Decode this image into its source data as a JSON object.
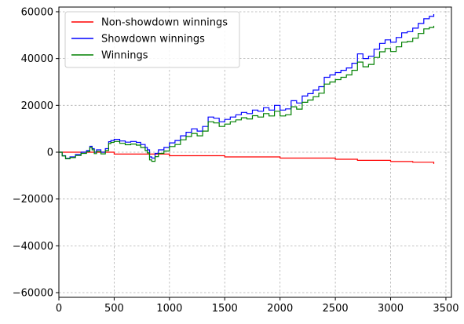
{
  "chart_data": {
    "type": "line",
    "xlim": [
      0,
      3550
    ],
    "ylim": [
      -62000,
      62000
    ],
    "x_ticks": [
      0,
      500,
      1000,
      1500,
      2000,
      2500,
      3000,
      3500
    ],
    "y_ticks": [
      -60000,
      -40000,
      -20000,
      0,
      20000,
      40000,
      60000
    ],
    "x_tick_labels": [
      "0",
      "500",
      "1000",
      "1500",
      "2000",
      "2500",
      "3000",
      "3500"
    ],
    "y_tick_labels": [
      "−60000",
      "−40000",
      "−20000",
      "0",
      "20000",
      "40000",
      "60000"
    ],
    "grid": true,
    "legend_position": "upper-left",
    "series": [
      {
        "name": "Non-showdown winnings",
        "color": "#ff0000",
        "x": [
          0,
          500,
          1000,
          1500,
          2000,
          2500,
          2700,
          3000,
          3200,
          3390
        ],
        "y": [
          0,
          -800,
          -1500,
          -2000,
          -2500,
          -3000,
          -3500,
          -4000,
          -4300,
          -5000
        ]
      },
      {
        "name": "Showdown winnings",
        "color": "#0000ff",
        "x": [
          0,
          30,
          60,
          100,
          150,
          200,
          250,
          280,
          300,
          320,
          340,
          380,
          420,
          450,
          470,
          500,
          550,
          600,
          650,
          700,
          740,
          780,
          800,
          820,
          840,
          870,
          900,
          950,
          1000,
          1050,
          1100,
          1150,
          1200,
          1250,
          1300,
          1350,
          1400,
          1450,
          1500,
          1550,
          1600,
          1650,
          1700,
          1750,
          1800,
          1850,
          1900,
          1950,
          2000,
          2050,
          2100,
          2150,
          2200,
          2250,
          2300,
          2350,
          2400,
          2450,
          2500,
          2550,
          2600,
          2650,
          2700,
          2750,
          2800,
          2850,
          2900,
          2950,
          3000,
          3050,
          3100,
          3150,
          3200,
          3250,
          3300,
          3350,
          3390
        ],
        "y": [
          0,
          -1500,
          -2600,
          -2000,
          -1000,
          0,
          700,
          2500,
          1500,
          0,
          1000,
          0,
          1500,
          4500,
          5000,
          5500,
          4800,
          4300,
          4600,
          4200,
          3300,
          2000,
          1000,
          -2000,
          -2500,
          -500,
          1000,
          2000,
          4000,
          5000,
          7000,
          8500,
          10000,
          9000,
          11000,
          15000,
          14500,
          13000,
          14000,
          15000,
          16000,
          17000,
          16500,
          18000,
          17500,
          19000,
          18000,
          20000,
          18000,
          18500,
          22000,
          21000,
          24000,
          25000,
          26500,
          28000,
          32000,
          33000,
          34000,
          35000,
          36000,
          38000,
          42000,
          40000,
          41000,
          44000,
          46500,
          48000,
          47000,
          49000,
          51000,
          51500,
          53000,
          55000,
          57000,
          58000,
          59000
        ]
      },
      {
        "name": "Winnings",
        "color": "#008000",
        "x": [
          0,
          30,
          60,
          100,
          150,
          200,
          250,
          280,
          300,
          320,
          340,
          380,
          420,
          450,
          470,
          500,
          550,
          600,
          650,
          700,
          740,
          780,
          800,
          820,
          840,
          870,
          900,
          950,
          1000,
          1050,
          1100,
          1150,
          1200,
          1250,
          1300,
          1350,
          1400,
          1450,
          1500,
          1550,
          1600,
          1650,
          1700,
          1750,
          1800,
          1850,
          1900,
          1950,
          2000,
          2050,
          2100,
          2150,
          2200,
          2250,
          2300,
          2350,
          2400,
          2450,
          2500,
          2550,
          2600,
          2650,
          2700,
          2750,
          2800,
          2850,
          2900,
          2950,
          3000,
          3050,
          3100,
          3150,
          3200,
          3250,
          3300,
          3350,
          3390
        ],
        "y": [
          0,
          -1600,
          -2800,
          -2300,
          -1400,
          -500,
          200,
          2000,
          1000,
          -600,
          300,
          -700,
          700,
          3700,
          4200,
          4600,
          3800,
          3200,
          3500,
          3000,
          2000,
          700,
          -300,
          -3300,
          -3900,
          -1900,
          -500,
          500,
          2400,
          3300,
          5300,
          6700,
          8000,
          7000,
          9000,
          13000,
          12500,
          11000,
          12000,
          13000,
          13800,
          14700,
          14200,
          15600,
          15000,
          16500,
          15500,
          17500,
          15500,
          16000,
          19400,
          18400,
          21300,
          22300,
          23700,
          25200,
          29100,
          30000,
          31000,
          32000,
          33000,
          35000,
          38500,
          36500,
          37500,
          40500,
          42900,
          44300,
          43000,
          45000,
          47000,
          47300,
          48700,
          50700,
          52700,
          53300,
          54000
        ]
      }
    ]
  }
}
